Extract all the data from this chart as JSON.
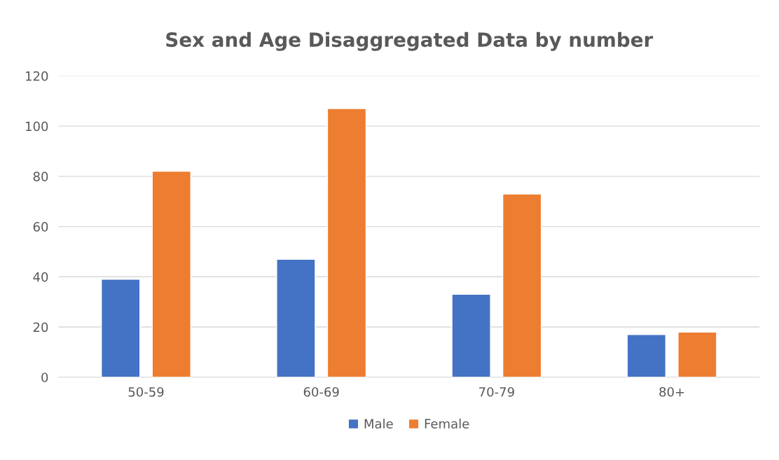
{
  "chart_data": {
    "type": "bar",
    "title": "Sex and Age Disaggregated Data by number",
    "categories": [
      "50-59",
      "60-69",
      "70-79",
      "80+"
    ],
    "series": [
      {
        "name": "Male",
        "color": "#4472c4",
        "values": [
          39,
          47,
          33,
          17
        ]
      },
      {
        "name": "Female",
        "color": "#ed7d31",
        "values": [
          82,
          107,
          73,
          18
        ]
      }
    ],
    "ylim": [
      0,
      120
    ],
    "yticks": [
      0,
      20,
      40,
      60,
      80,
      100,
      120
    ],
    "grid": "y",
    "legend": "bottom"
  }
}
